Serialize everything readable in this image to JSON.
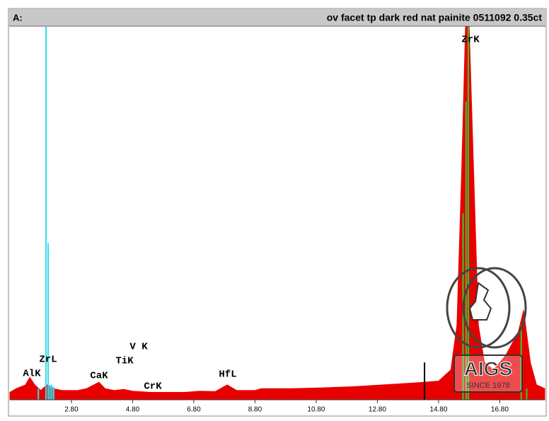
{
  "header": {
    "label": "A:",
    "title": "ov facet tp dark red nat painite 0511092  0.35ct"
  },
  "chart_data": {
    "type": "area",
    "x": [
      0.79,
      1.0,
      1.3,
      1.44,
      1.6,
      1.8,
      2.0,
      2.2,
      2.5,
      3.0,
      3.3,
      3.7,
      3.9,
      4.2,
      4.51,
      4.8,
      5.4,
      6.0,
      6.5,
      7.0,
      7.5,
      7.89,
      8.2,
      8.8,
      9.0,
      10.0,
      11.0,
      12.0,
      13.0,
      14.0,
      14.8,
      15.2,
      15.4,
      15.55,
      15.68,
      15.8,
      15.95,
      16.1,
      16.3,
      16.6,
      17.0,
      17.4,
      17.58,
      17.8,
      18.0,
      18.27
    ],
    "series": [
      {
        "color": "#e80000",
        "values": [
          2,
          3,
          4,
          6,
          4,
          2.5,
          4,
          3,
          2.5,
          2.5,
          3,
          4.7,
          3,
          2.5,
          2.8,
          2.3,
          2,
          2,
          2,
          2.3,
          2.2,
          4,
          2.5,
          2.5,
          3,
          3,
          3.2,
          3.5,
          4,
          4.5,
          5,
          8,
          20,
          60,
          100,
          100,
          60,
          20,
          10,
          8,
          12,
          18,
          24,
          10,
          4,
          3
        ]
      }
    ],
    "lines": [
      {
        "color": "#33ddee",
        "x": [
          1.97,
          2.04,
          2.1,
          2.16,
          2.22,
          1.72
        ],
        "values": [
          100,
          42,
          4,
          4,
          3.5,
          3
        ]
      },
      {
        "color": "#33cc33",
        "x": [
          15.6,
          15.7,
          15.77,
          17.5,
          17.68
        ],
        "values": [
          50,
          80,
          100,
          20,
          3
        ]
      }
    ],
    "cursor": {
      "color": "#000000",
      "x": 14.34,
      "value": 10
    },
    "annotations": [
      "AlK",
      "ZrL",
      "CaK",
      "TiK",
      "V K",
      "CrK",
      "HfL",
      "ZrK"
    ],
    "xlim": [
      0.79,
      18.27
    ],
    "ylim": [
      0,
      100
    ],
    "xticks": [
      {
        "value": 2.8,
        "label": "2.80"
      },
      {
        "value": 4.8,
        "label": "4.80"
      },
      {
        "value": 6.8,
        "label": "6.80"
      },
      {
        "value": 8.8,
        "label": "8.80"
      },
      {
        "value": 10.8,
        "label": "10.80"
      },
      {
        "value": 12.8,
        "label": "12.80"
      },
      {
        "value": 14.8,
        "label": "14.80"
      },
      {
        "value": 16.8,
        "label": "16.80"
      }
    ]
  },
  "logo": {
    "text": "AIGS",
    "since": "SINCE 1978"
  }
}
